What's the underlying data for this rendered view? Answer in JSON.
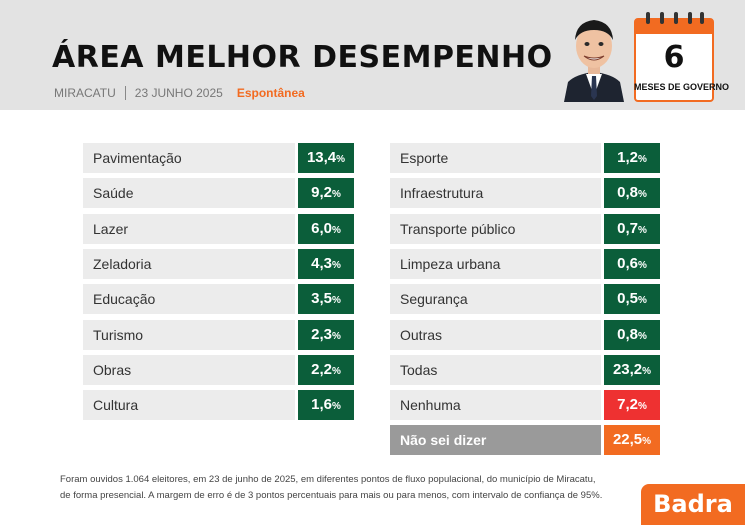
{
  "header": {
    "title": "ÁREA MELHOR DESEMPENHO",
    "city": "MIRACATU",
    "date": "23 JUNHO 2025",
    "type": "Espontânea",
    "calendar_number": "6",
    "calendar_label": "MESES DE GOVERNO"
  },
  "chart_data": {
    "type": "table",
    "unit": "%",
    "left": [
      {
        "label": "Pavimentação",
        "value": "13,4"
      },
      {
        "label": "Saúde",
        "value": "9,2"
      },
      {
        "label": "Lazer",
        "value": "6,0"
      },
      {
        "label": "Zeladoria",
        "value": "4,3"
      },
      {
        "label": "Educação",
        "value": "3,5"
      },
      {
        "label": "Turismo",
        "value": "2,3"
      },
      {
        "label": "Obras",
        "value": "2,2"
      },
      {
        "label": "Cultura",
        "value": "1,6"
      }
    ],
    "right": [
      {
        "label": "Esporte",
        "value": "1,2"
      },
      {
        "label": "Infraestrutura",
        "value": "0,8"
      },
      {
        "label": "Transporte público",
        "value": "0,7"
      },
      {
        "label": "Limpeza urbana",
        "value": "0,6"
      },
      {
        "label": "Segurança",
        "value": "0,5"
      },
      {
        "label": "Outras",
        "value": "0,8"
      },
      {
        "label": "Todas",
        "value": "23,2"
      },
      {
        "label": "Nenhuma",
        "value": "7,2"
      },
      {
        "label": "Não sei dizer",
        "value": "22,5"
      }
    ]
  },
  "footnote": {
    "line1": "Foram ouvidos 1.064 eleitores, em 23 de junho de 2025, em diferentes pontos de fluxo populacional, do município de Miracatu,",
    "line2": "de forma presencial. A margem de erro é de 3 pontos percentuais para mais ou para menos, com intervalo de confiança de 95%."
  },
  "brand": "Badra",
  "colors": {
    "green": "#0b5e3a",
    "red": "#ee3131",
    "orange": "#f26b21",
    "gray": "#9a9a9a",
    "row_bg": "#ececec",
    "header_bg": "#e3e3e3"
  }
}
